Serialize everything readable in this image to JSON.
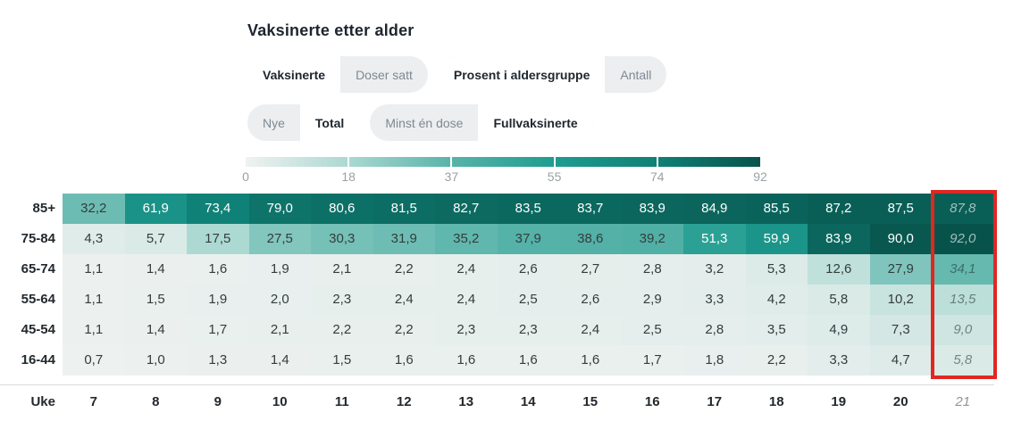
{
  "title": "Vaksinerte etter alder",
  "toggles": [
    {
      "row": 1,
      "options": [
        "Vaksinerte",
        "Doser satt"
      ],
      "active": 0
    },
    {
      "row": 1,
      "options": [
        "Prosent i aldersgruppe",
        "Antall"
      ],
      "active": 0
    },
    {
      "row": 2,
      "options": [
        "Nye",
        "Total"
      ],
      "active": 1
    },
    {
      "row": 2,
      "options": [
        "Minst én dose",
        "Fullvaksinerte"
      ],
      "active": 1
    }
  ],
  "chart_data": {
    "type": "heatmap",
    "x_label": "Uke",
    "columns": [
      7,
      8,
      9,
      10,
      11,
      12,
      13,
      14,
      15,
      16,
      17,
      18,
      19,
      20,
      21
    ],
    "rows": [
      "85+",
      "75-84",
      "65-74",
      "55-64",
      "45-54",
      "16-44"
    ],
    "values": [
      [
        32.2,
        61.9,
        73.4,
        79.0,
        80.6,
        81.5,
        82.7,
        83.5,
        83.7,
        83.9,
        84.9,
        85.5,
        87.2,
        87.5,
        87.8
      ],
      [
        4.3,
        5.7,
        17.5,
        27.5,
        30.3,
        31.9,
        35.2,
        37.9,
        38.6,
        39.2,
        51.3,
        59.9,
        83.9,
        90.0,
        92.0
      ],
      [
        1.1,
        1.4,
        1.6,
        1.9,
        2.1,
        2.2,
        2.4,
        2.6,
        2.7,
        2.8,
        3.2,
        5.3,
        12.6,
        27.9,
        34.1
      ],
      [
        1.1,
        1.5,
        1.9,
        2.0,
        2.3,
        2.4,
        2.4,
        2.5,
        2.6,
        2.9,
        3.3,
        4.2,
        5.8,
        10.2,
        13.5
      ],
      [
        1.1,
        1.4,
        1.7,
        2.1,
        2.2,
        2.2,
        2.3,
        2.3,
        2.4,
        2.5,
        2.8,
        3.5,
        4.9,
        7.3,
        9.0
      ],
      [
        0.7,
        1.0,
        1.3,
        1.4,
        1.5,
        1.6,
        1.6,
        1.6,
        1.6,
        1.7,
        1.8,
        2.2,
        3.3,
        4.7,
        5.8
      ]
    ],
    "legend": {
      "min": 0,
      "max": 92,
      "ticks": [
        "0",
        "18",
        "37",
        "55",
        "74",
        "92"
      ]
    },
    "color_scale": {
      "domain": [
        0,
        18,
        37,
        55,
        74,
        92
      ],
      "range": [
        "#f0f2f1",
        "#abd8d2",
        "#58b3a9",
        "#1f9c90",
        "#108076",
        "#07534b"
      ]
    },
    "preliminary_last_column": true,
    "highlight_color": "#e02722",
    "decimal_separator": ","
  }
}
